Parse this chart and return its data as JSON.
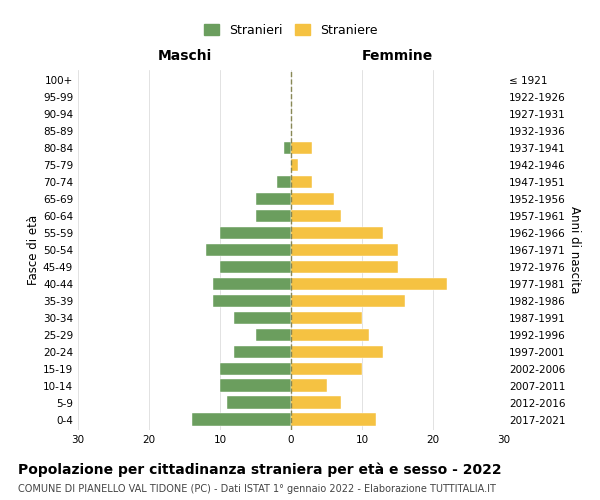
{
  "age_groups": [
    "100+",
    "95-99",
    "90-94",
    "85-89",
    "80-84",
    "75-79",
    "70-74",
    "65-69",
    "60-64",
    "55-59",
    "50-54",
    "45-49",
    "40-44",
    "35-39",
    "30-34",
    "25-29",
    "20-24",
    "15-19",
    "10-14",
    "5-9",
    "0-4"
  ],
  "birth_years": [
    "≤ 1921",
    "1922-1926",
    "1927-1931",
    "1932-1936",
    "1937-1941",
    "1942-1946",
    "1947-1951",
    "1952-1956",
    "1957-1961",
    "1962-1966",
    "1967-1971",
    "1972-1976",
    "1977-1981",
    "1982-1986",
    "1987-1991",
    "1992-1996",
    "1997-2001",
    "2002-2006",
    "2007-2011",
    "2012-2016",
    "2017-2021"
  ],
  "males": [
    0,
    0,
    0,
    0,
    1,
    0,
    2,
    5,
    5,
    10,
    12,
    10,
    11,
    11,
    8,
    5,
    8,
    10,
    10,
    9,
    14
  ],
  "females": [
    0,
    0,
    0,
    0,
    3,
    1,
    3,
    6,
    7,
    13,
    15,
    15,
    22,
    16,
    10,
    11,
    13,
    10,
    5,
    7,
    12
  ],
  "male_color": "#6b9e5e",
  "female_color": "#f5c242",
  "background_color": "#ffffff",
  "grid_color": "#cccccc",
  "center_line_color": "#888855",
  "title": "Popolazione per cittadinanza straniera per età e sesso - 2022",
  "subtitle": "COMUNE DI PIANELLO VAL TIDONE (PC) - Dati ISTAT 1° gennaio 2022 - Elaborazione TUTTITALIA.IT",
  "left_header": "Maschi",
  "right_header": "Femmine",
  "left_yaxis_label": "Fasce di età",
  "right_yaxis_label": "Anni di nascita",
  "legend_stranieri": "Stranieri",
  "legend_straniere": "Straniere",
  "xlim": 30,
  "title_fontsize": 10,
  "subtitle_fontsize": 7,
  "tick_fontsize": 7.5,
  "header_fontsize": 10,
  "ylabel_fontsize": 8.5
}
